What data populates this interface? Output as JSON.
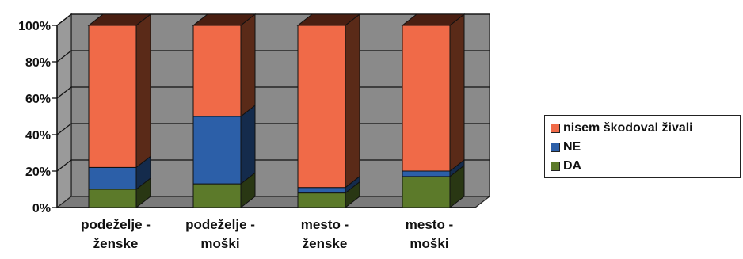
{
  "chart_data": {
    "type": "bar",
    "stacked": true,
    "percent": true,
    "three_d": true,
    "title": "",
    "xlabel": "",
    "ylabel": "",
    "ylim": [
      0,
      100
    ],
    "yticks": [
      "0%",
      "20%",
      "40%",
      "60%",
      "80%",
      "100%"
    ],
    "categories": [
      [
        "podeželje -",
        "ženske"
      ],
      [
        "podeželje -",
        "moški"
      ],
      [
        "mesto -",
        "ženske"
      ],
      [
        "mesto -",
        "moški"
      ]
    ],
    "series": [
      {
        "name": "DA",
        "color": "#5c7a2a",
        "values": [
          10,
          13,
          8,
          17
        ]
      },
      {
        "name": "NE",
        "color": "#2c5fa8",
        "values": [
          12,
          37,
          3,
          3
        ]
      },
      {
        "name": "nisem škodoval živali",
        "color": "#f06a48",
        "values": [
          78,
          50,
          89,
          80
        ]
      }
    ],
    "grid": true,
    "legend_position": "right"
  },
  "legend": {
    "order": [
      2,
      1,
      0
    ]
  }
}
